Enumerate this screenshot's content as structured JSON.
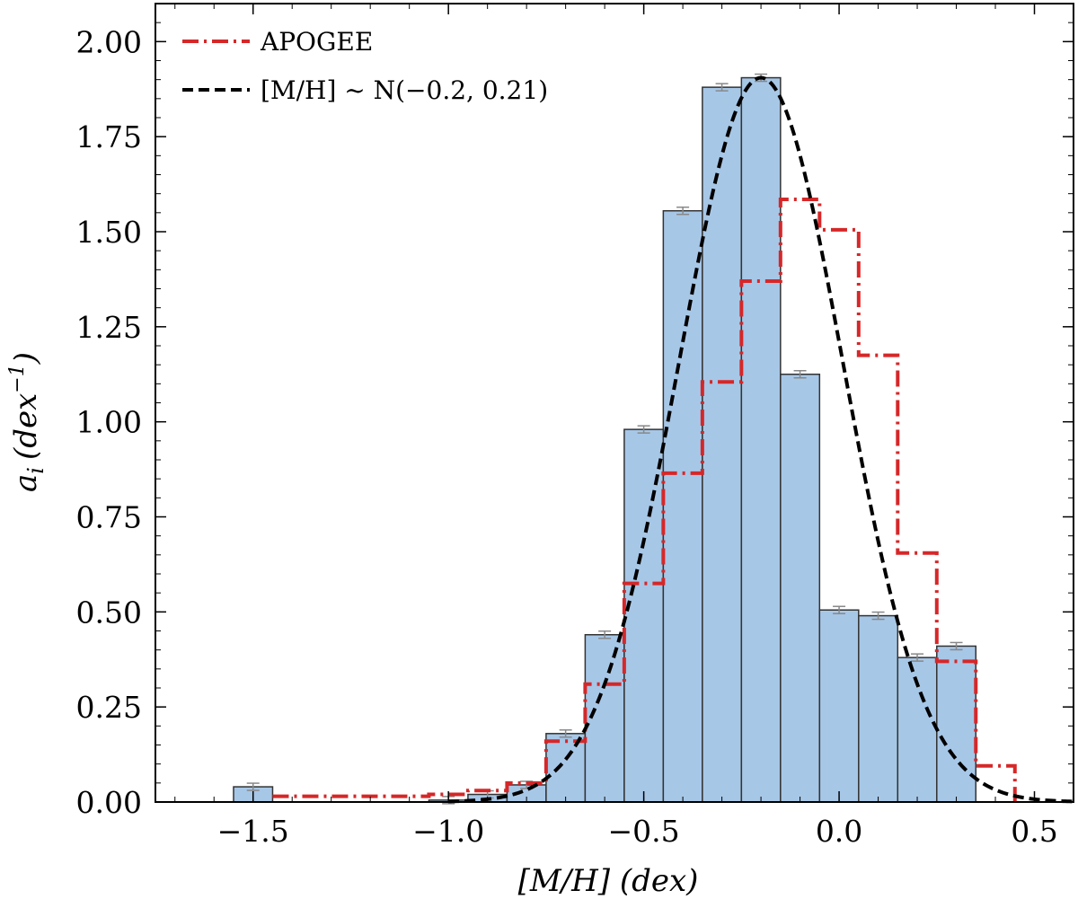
{
  "chart_data": {
    "type": "bar",
    "xlabel": "[M/H] (dex)",
    "ylabel_base": "a",
    "ylabel_sub": "i",
    "ylabel_unit": "(dex",
    "ylabel_exp": "−1",
    "ylabel_close": ")",
    "xlim": [
      -1.75,
      0.6
    ],
    "ylim": [
      0,
      2.1
    ],
    "x_ticks": [
      -1.5,
      -1.0,
      -0.5,
      0.0,
      0.5
    ],
    "x_tick_labels": [
      "−1.5",
      "−1.0",
      "−0.5",
      "0.0",
      "0.5"
    ],
    "y_ticks": [
      0,
      0.25,
      0.5,
      0.75,
      1.0,
      1.25,
      1.5,
      1.75,
      2.0
    ],
    "y_tick_labels": [
      "0.00",
      "0.25",
      "0.50",
      "0.75",
      "1.00",
      "1.25",
      "1.50",
      "1.75",
      "2.00"
    ],
    "grid": false,
    "legend_position": "top-left",
    "histogram": {
      "bin_width": 0.1,
      "color": "#a7c7e7",
      "edge_color": "#333333",
      "bins": [
        {
          "x0": -1.55,
          "value": 0.04
        },
        {
          "x0": -1.05,
          "value": 0.005
        },
        {
          "x0": -0.95,
          "value": 0.02
        },
        {
          "x0": -0.85,
          "value": 0.045
        },
        {
          "x0": -0.75,
          "value": 0.18
        },
        {
          "x0": -0.65,
          "value": 0.44
        },
        {
          "x0": -0.55,
          "value": 0.98
        },
        {
          "x0": -0.45,
          "value": 1.555
        },
        {
          "x0": -0.35,
          "value": 1.88
        },
        {
          "x0": -0.25,
          "value": 1.905
        },
        {
          "x0": -0.15,
          "value": 1.125
        },
        {
          "x0": -0.05,
          "value": 0.505
        },
        {
          "x0": 0.05,
          "value": 0.49
        },
        {
          "x0": 0.15,
          "value": 0.38
        },
        {
          "x0": 0.25,
          "value": 0.41
        }
      ]
    },
    "series": [
      {
        "name": "APOGEE",
        "style": "dashdot-step",
        "color": "#d62728",
        "edges": [
          -1.45,
          -1.35,
          -1.25,
          -1.15,
          -1.05,
          -0.95,
          -0.85,
          -0.75,
          -0.65,
          -0.55,
          -0.45,
          -0.35,
          -0.25,
          -0.15,
          -0.05,
          0.05,
          0.15,
          0.25,
          0.35,
          0.45
        ],
        "values": [
          0.015,
          0.015,
          0.015,
          0.015,
          0.02,
          0.03,
          0.05,
          0.16,
          0.31,
          0.575,
          0.865,
          1.105,
          1.37,
          1.585,
          1.505,
          1.175,
          0.655,
          0.37,
          0.095
        ]
      },
      {
        "name": "[M/H] ~ N(−0.2, 0.21)",
        "style": "dashed-curve",
        "color": "#000000",
        "mu": -0.2,
        "sigma": 0.21,
        "x_range": [
          -1.0,
          0.6
        ]
      }
    ]
  }
}
